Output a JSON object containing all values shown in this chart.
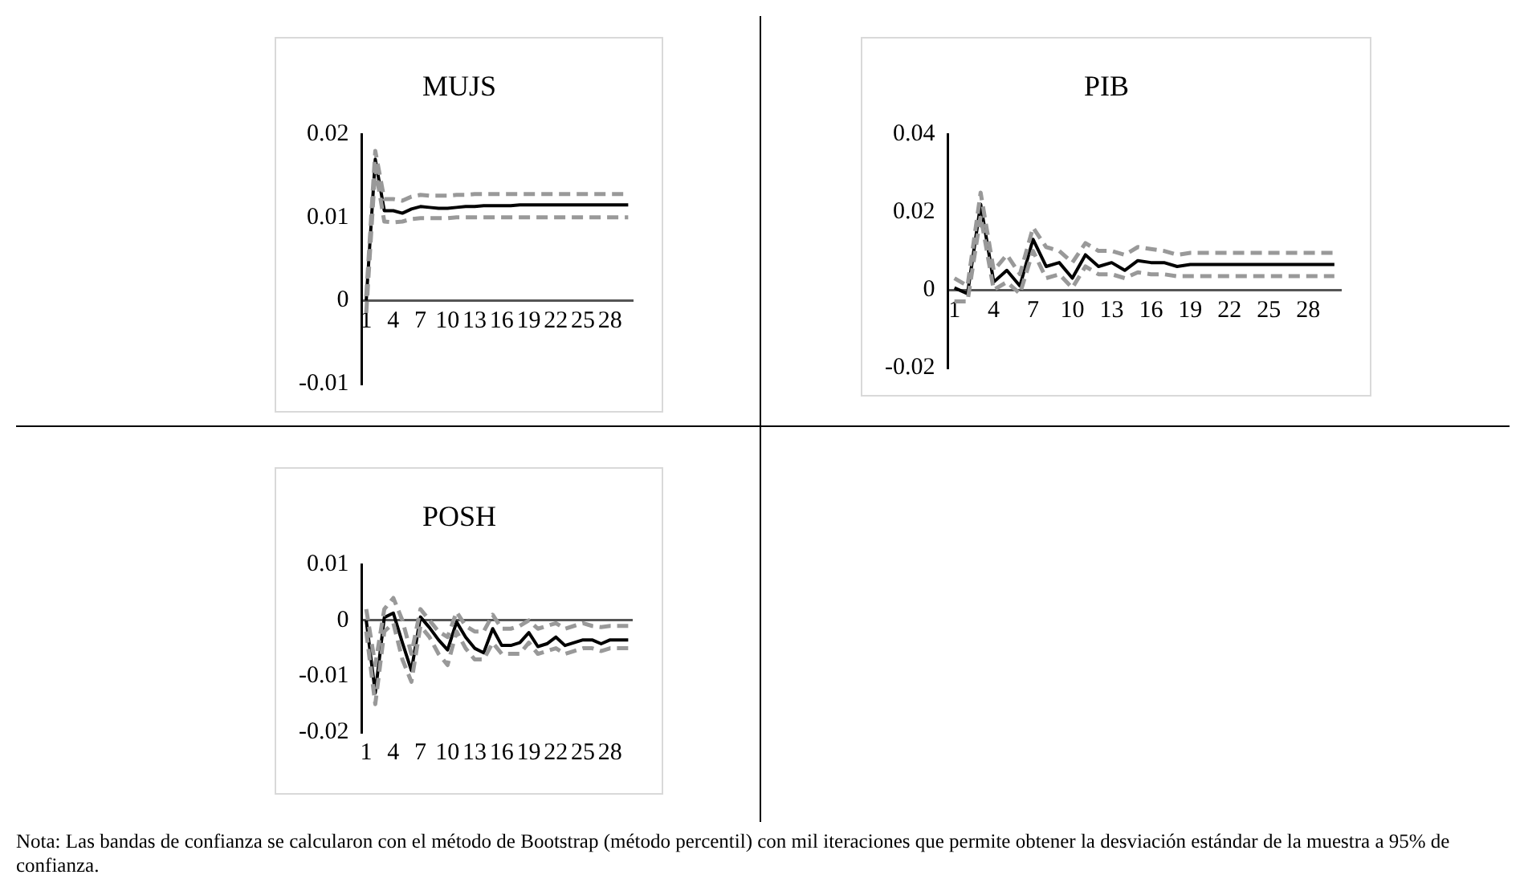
{
  "chart_data": [
    {
      "type": "line",
      "title": "MUJS",
      "legend": false,
      "marker": "none",
      "categories": [
        "1",
        null,
        null,
        "4",
        null,
        null,
        "7",
        null,
        null,
        "10",
        null,
        null,
        "13",
        null,
        null,
        "16",
        null,
        null,
        "19",
        null,
        null,
        "22",
        null,
        null,
        "25",
        null,
        null,
        "28",
        null,
        null
      ],
      "ylim": [
        -0.01,
        0.02
      ],
      "yticks": [
        -0.01,
        0,
        0.01,
        0.02
      ],
      "annotations": [
        "Nota: Las bandas de confianza se calcularon con el método de Bootstrap (método percentil) con mil iteraciones que permite obtener la desviación estándar de la muestra a 95% de confianza."
      ],
      "series": [
        {
          "color": "#000000",
          "line_style": "solid",
          "values": [
            0,
            0.017,
            0.0108,
            0.0108,
            0.0105,
            0.011,
            0.0113,
            0.0112,
            0.0111,
            0.0111,
            0.0112,
            0.0113,
            0.0113,
            0.0114,
            0.0114,
            0.0114,
            0.0114,
            0.0115,
            0.0115,
            0.0115,
            0.0115,
            0.0115,
            0.0115,
            0.0115,
            0.0115,
            0.0115,
            0.0115,
            0.0115,
            0.0115,
            0.0115
          ]
        },
        {
          "color": "#999999",
          "line_style": "dashed",
          "values": [
            0.0005,
            0.018,
            0.0122,
            0.0122,
            0.012,
            0.0125,
            0.0127,
            0.0126,
            0.0126,
            0.0126,
            0.0127,
            0.0127,
            0.0128,
            0.0128,
            0.0128,
            0.0128,
            0.0128,
            0.0128,
            0.0128,
            0.0128,
            0.0128,
            0.0128,
            0.0128,
            0.0128,
            0.0128,
            0.0128,
            0.0128,
            0.0128,
            0.0128,
            0.0128
          ]
        },
        {
          "color": "#999999",
          "line_style": "dashed",
          "values": [
            -0.0015,
            0.016,
            0.0095,
            0.0094,
            0.0095,
            0.0098,
            0.0099,
            0.0099,
            0.0099,
            0.0099,
            0.01,
            0.01,
            0.01,
            0.01,
            0.01,
            0.01,
            0.01,
            0.01,
            0.01,
            0.01,
            0.01,
            0.01,
            0.01,
            0.01,
            0.01,
            0.01,
            0.01,
            0.01,
            0.01,
            0.01
          ]
        }
      ]
    },
    {
      "type": "line",
      "title": "PIB",
      "legend": false,
      "marker": "none",
      "categories": [
        "1",
        null,
        null,
        "4",
        null,
        null,
        "7",
        null,
        null,
        "10",
        null,
        null,
        "13",
        null,
        null,
        "16",
        null,
        null,
        "19",
        null,
        null,
        "22",
        null,
        null,
        "25",
        null,
        null,
        "28",
        null,
        null
      ],
      "ylim": [
        -0.02,
        0.04
      ],
      "yticks": [
        -0.02,
        0,
        0.02,
        0.04
      ],
      "series": [
        {
          "color": "#000000",
          "line_style": "solid",
          "values": [
            0.0005,
            -0.001,
            0.022,
            0.002,
            0.005,
            0.001,
            0.013,
            0.006,
            0.007,
            0.003,
            0.009,
            0.006,
            0.007,
            0.005,
            0.0075,
            0.007,
            0.007,
            0.006,
            0.0065,
            0.0065,
            0.0065,
            0.0065,
            0.0065,
            0.0065,
            0.0065,
            0.0065,
            0.0065,
            0.0065,
            0.0065,
            0.0065
          ]
        },
        {
          "color": "#999999",
          "line_style": "dashed",
          "values": [
            0.003,
            0.001,
            0.025,
            0.005,
            0.009,
            0.004,
            0.016,
            0.011,
            0.01,
            0.007,
            0.012,
            0.01,
            0.01,
            0.009,
            0.011,
            0.0105,
            0.01,
            0.009,
            0.0095,
            0.0095,
            0.0095,
            0.0095,
            0.0095,
            0.0095,
            0.0095,
            0.0095,
            0.0095,
            0.0095,
            0.0095,
            0.0095
          ]
        },
        {
          "color": "#999999",
          "line_style": "dashed",
          "values": [
            -0.003,
            -0.003,
            0.019,
            0,
            0.002,
            -0.001,
            0.01,
            0.003,
            0.004,
            0.0005,
            0.006,
            0.004,
            0.004,
            0.003,
            0.0045,
            0.004,
            0.004,
            0.0035,
            0.0035,
            0.0035,
            0.0035,
            0.0035,
            0.0035,
            0.0035,
            0.0035,
            0.0035,
            0.0035,
            0.0035,
            0.0035,
            0.0035
          ]
        }
      ]
    },
    {
      "type": "line",
      "title": "POSH",
      "legend": false,
      "marker": "none",
      "categories": [
        "1",
        null,
        null,
        "4",
        null,
        null,
        "7",
        null,
        null,
        "10",
        null,
        null,
        "13",
        null,
        null,
        "16",
        null,
        null,
        "19",
        null,
        null,
        "22",
        null,
        null,
        "25",
        null,
        null,
        "28",
        null,
        null
      ],
      "ylim": [
        -0.02,
        0.01
      ],
      "yticks": [
        -0.02,
        -0.01,
        0,
        0.01
      ],
      "series": [
        {
          "color": "#000000",
          "line_style": "solid",
          "values": [
            0,
            -0.013,
            0.0005,
            0.0013,
            -0.004,
            -0.009,
            0.0006,
            -0.0013,
            -0.0035,
            -0.0053,
            -0.0003,
            -0.003,
            -0.005,
            -0.0058,
            -0.0015,
            -0.0045,
            -0.0045,
            -0.004,
            -0.0022,
            -0.0047,
            -0.0042,
            -0.003,
            -0.0045,
            -0.004,
            -0.0035,
            -0.0035,
            -0.0042,
            -0.0035,
            -0.0035,
            -0.0035
          ]
        },
        {
          "color": "#999999",
          "line_style": "dashed",
          "values": [
            0.002,
            -0.008,
            0.002,
            0.004,
            0,
            -0.006,
            0.002,
            0,
            -0.002,
            -0.003,
            0.0015,
            -0.001,
            -0.002,
            -0.002,
            0.001,
            -0.0015,
            -0.0015,
            -0.001,
            0,
            -0.0015,
            -0.001,
            -0.0005,
            -0.0015,
            -0.001,
            -0.0005,
            -0.001,
            -0.0012,
            -0.001,
            -0.001,
            -0.001
          ]
        },
        {
          "color": "#999999",
          "line_style": "dashed",
          "values": [
            -0.002,
            -0.015,
            -0.002,
            -0.0005,
            -0.007,
            -0.011,
            -0.001,
            -0.003,
            -0.006,
            -0.008,
            -0.002,
            -0.005,
            -0.007,
            -0.007,
            -0.004,
            -0.006,
            -0.006,
            -0.006,
            -0.004,
            -0.006,
            -0.0055,
            -0.005,
            -0.006,
            -0.0055,
            -0.005,
            -0.005,
            -0.0055,
            -0.005,
            -0.005,
            -0.005
          ]
        }
      ]
    }
  ]
}
